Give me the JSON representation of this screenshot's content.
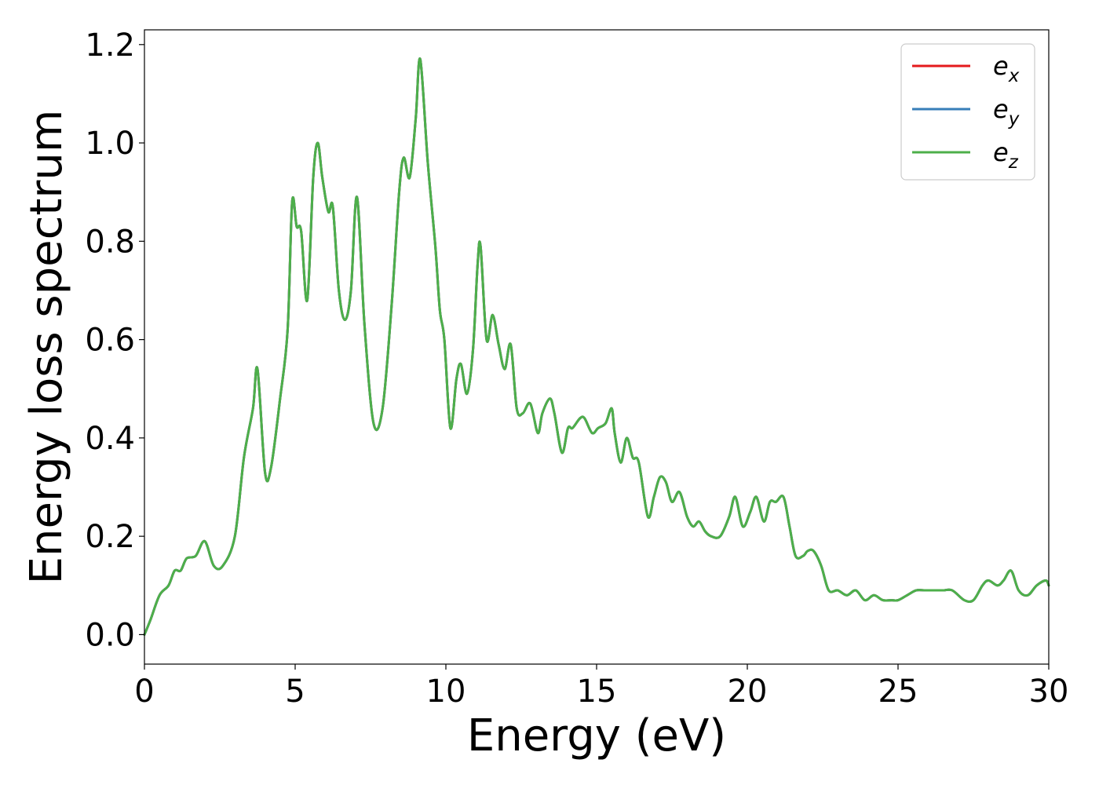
{
  "chart_data": {
    "type": "line",
    "title": "",
    "xlabel": "Energy (eV)",
    "ylabel": "Energy loss spectrum",
    "xlim": [
      0,
      30
    ],
    "ylim": [
      -0.06,
      1.23
    ],
    "xticks": [
      0,
      5,
      10,
      15,
      20,
      25,
      30
    ],
    "xtick_labels": [
      "0",
      "5",
      "10",
      "15",
      "20",
      "25",
      "30"
    ],
    "yticks": [
      0.0,
      0.2,
      0.4,
      0.6,
      0.8,
      1.0,
      1.2
    ],
    "ytick_labels": [
      "0.0",
      "0.2",
      "0.4",
      "0.6",
      "0.8",
      "1.0",
      "1.2"
    ],
    "grid": false,
    "legend_position": "top-right",
    "series": [
      {
        "name": "e_x",
        "legend_base": "e",
        "legend_sub": "x",
        "color": "#e41a1c",
        "x": [
          0,
          0.2,
          0.5,
          0.8,
          1.0,
          1.2,
          1.4,
          1.7,
          2.0,
          2.3,
          2.6,
          3.0,
          3.3,
          3.6,
          3.75,
          4.0,
          4.2,
          4.5,
          4.75,
          4.9,
          5.05,
          5.2,
          5.4,
          5.6,
          5.75,
          5.9,
          6.1,
          6.25,
          6.45,
          6.65,
          6.85,
          7.05,
          7.3,
          7.6,
          7.9,
          8.2,
          8.45,
          8.6,
          8.8,
          9.0,
          9.15,
          9.4,
          9.65,
          9.8,
          9.95,
          10.15,
          10.35,
          10.5,
          10.7,
          10.9,
          11.05,
          11.15,
          11.35,
          11.55,
          11.75,
          11.95,
          12.15,
          12.35,
          12.55,
          12.8,
          13.05,
          13.2,
          13.45,
          13.6,
          13.85,
          14.05,
          14.2,
          14.45,
          14.6,
          14.85,
          15.05,
          15.3,
          15.5,
          15.6,
          15.8,
          16.0,
          16.2,
          16.4,
          16.7,
          16.9,
          17.1,
          17.3,
          17.5,
          17.75,
          18.0,
          18.2,
          18.4,
          18.6,
          18.8,
          19.1,
          19.4,
          19.6,
          19.85,
          20.1,
          20.3,
          20.55,
          20.75,
          20.95,
          21.2,
          21.4,
          21.6,
          21.85,
          22.0,
          22.2,
          22.45,
          22.7,
          23.0,
          23.3,
          23.6,
          23.9,
          24.2,
          24.5,
          24.8,
          25.0,
          25.3,
          25.6,
          25.9,
          26.2,
          26.5,
          26.8,
          27.2,
          27.5,
          27.8,
          28.0,
          28.3,
          28.5,
          28.75,
          29.0,
          29.3,
          29.6,
          29.9,
          30.0
        ],
        "y": [
          0.0,
          0.03,
          0.08,
          0.1,
          0.13,
          0.13,
          0.155,
          0.16,
          0.19,
          0.14,
          0.14,
          0.2,
          0.36,
          0.46,
          0.54,
          0.33,
          0.34,
          0.48,
          0.62,
          0.88,
          0.83,
          0.82,
          0.68,
          0.93,
          1.0,
          0.93,
          0.86,
          0.87,
          0.7,
          0.64,
          0.7,
          0.89,
          0.63,
          0.43,
          0.46,
          0.67,
          0.9,
          0.97,
          0.93,
          1.05,
          1.17,
          0.96,
          0.79,
          0.66,
          0.6,
          0.42,
          0.52,
          0.55,
          0.49,
          0.58,
          0.75,
          0.79,
          0.6,
          0.65,
          0.59,
          0.54,
          0.59,
          0.46,
          0.45,
          0.47,
          0.41,
          0.45,
          0.48,
          0.45,
          0.37,
          0.42,
          0.42,
          0.44,
          0.44,
          0.41,
          0.42,
          0.43,
          0.46,
          0.41,
          0.35,
          0.4,
          0.36,
          0.35,
          0.24,
          0.28,
          0.32,
          0.31,
          0.27,
          0.29,
          0.24,
          0.22,
          0.23,
          0.21,
          0.2,
          0.2,
          0.24,
          0.28,
          0.22,
          0.25,
          0.28,
          0.23,
          0.27,
          0.27,
          0.28,
          0.22,
          0.16,
          0.16,
          0.17,
          0.17,
          0.14,
          0.09,
          0.09,
          0.08,
          0.09,
          0.07,
          0.08,
          0.07,
          0.07,
          0.07,
          0.08,
          0.09,
          0.09,
          0.09,
          0.09,
          0.09,
          0.07,
          0.07,
          0.1,
          0.11,
          0.1,
          0.11,
          0.13,
          0.09,
          0.08,
          0.1,
          0.11,
          0.1
        ]
      },
      {
        "name": "e_y",
        "legend_base": "e",
        "legend_sub": "y",
        "color": "#377eb8",
        "x": [
          0,
          0.2,
          0.5,
          0.8,
          1.0,
          1.2,
          1.4,
          1.7,
          2.0,
          2.3,
          2.6,
          3.0,
          3.3,
          3.6,
          3.75,
          4.0,
          4.2,
          4.5,
          4.75,
          4.9,
          5.05,
          5.2,
          5.4,
          5.6,
          5.75,
          5.9,
          6.1,
          6.25,
          6.45,
          6.65,
          6.85,
          7.05,
          7.3,
          7.6,
          7.9,
          8.2,
          8.45,
          8.6,
          8.8,
          9.0,
          9.15,
          9.4,
          9.65,
          9.8,
          9.95,
          10.15,
          10.35,
          10.5,
          10.7,
          10.9,
          11.05,
          11.15,
          11.35,
          11.55,
          11.75,
          11.95,
          12.15,
          12.35,
          12.55,
          12.8,
          13.05,
          13.2,
          13.45,
          13.6,
          13.85,
          14.05,
          14.2,
          14.45,
          14.6,
          14.85,
          15.05,
          15.3,
          15.5,
          15.6,
          15.8,
          16.0,
          16.2,
          16.4,
          16.7,
          16.9,
          17.1,
          17.3,
          17.5,
          17.75,
          18.0,
          18.2,
          18.4,
          18.6,
          18.8,
          19.1,
          19.4,
          19.6,
          19.85,
          20.1,
          20.3,
          20.55,
          20.75,
          20.95,
          21.2,
          21.4,
          21.6,
          21.85,
          22.0,
          22.2,
          22.45,
          22.7,
          23.0,
          23.3,
          23.6,
          23.9,
          24.2,
          24.5,
          24.8,
          25.0,
          25.3,
          25.6,
          25.9,
          26.2,
          26.5,
          26.8,
          27.2,
          27.5,
          27.8,
          28.0,
          28.3,
          28.5,
          28.75,
          29.0,
          29.3,
          29.6,
          29.9,
          30.0
        ],
        "y": [
          0.0,
          0.03,
          0.08,
          0.1,
          0.13,
          0.13,
          0.155,
          0.16,
          0.19,
          0.14,
          0.14,
          0.2,
          0.36,
          0.46,
          0.54,
          0.33,
          0.34,
          0.48,
          0.62,
          0.88,
          0.83,
          0.82,
          0.68,
          0.93,
          1.0,
          0.93,
          0.86,
          0.87,
          0.7,
          0.64,
          0.7,
          0.89,
          0.63,
          0.43,
          0.46,
          0.67,
          0.9,
          0.97,
          0.93,
          1.05,
          1.17,
          0.96,
          0.79,
          0.66,
          0.6,
          0.42,
          0.52,
          0.55,
          0.49,
          0.58,
          0.75,
          0.79,
          0.6,
          0.65,
          0.59,
          0.54,
          0.59,
          0.46,
          0.45,
          0.47,
          0.41,
          0.45,
          0.48,
          0.45,
          0.37,
          0.42,
          0.42,
          0.44,
          0.44,
          0.41,
          0.42,
          0.43,
          0.46,
          0.41,
          0.35,
          0.4,
          0.36,
          0.35,
          0.24,
          0.28,
          0.32,
          0.31,
          0.27,
          0.29,
          0.24,
          0.22,
          0.23,
          0.21,
          0.2,
          0.2,
          0.24,
          0.28,
          0.22,
          0.25,
          0.28,
          0.23,
          0.27,
          0.27,
          0.28,
          0.22,
          0.16,
          0.16,
          0.17,
          0.17,
          0.14,
          0.09,
          0.09,
          0.08,
          0.09,
          0.07,
          0.08,
          0.07,
          0.07,
          0.07,
          0.08,
          0.09,
          0.09,
          0.09,
          0.09,
          0.09,
          0.07,
          0.07,
          0.1,
          0.11,
          0.1,
          0.11,
          0.13,
          0.09,
          0.08,
          0.1,
          0.11,
          0.1
        ]
      },
      {
        "name": "e_z",
        "legend_base": "e",
        "legend_sub": "z",
        "color": "#4daf4a",
        "x": [
          0,
          0.2,
          0.5,
          0.8,
          1.0,
          1.2,
          1.4,
          1.7,
          2.0,
          2.3,
          2.6,
          3.0,
          3.3,
          3.6,
          3.75,
          4.0,
          4.2,
          4.5,
          4.75,
          4.9,
          5.05,
          5.2,
          5.4,
          5.6,
          5.75,
          5.9,
          6.1,
          6.25,
          6.45,
          6.65,
          6.85,
          7.05,
          7.3,
          7.6,
          7.9,
          8.2,
          8.45,
          8.6,
          8.8,
          9.0,
          9.15,
          9.4,
          9.65,
          9.8,
          9.95,
          10.15,
          10.35,
          10.5,
          10.7,
          10.9,
          11.05,
          11.15,
          11.35,
          11.55,
          11.75,
          11.95,
          12.15,
          12.35,
          12.55,
          12.8,
          13.05,
          13.2,
          13.45,
          13.6,
          13.85,
          14.05,
          14.2,
          14.45,
          14.6,
          14.85,
          15.05,
          15.3,
          15.5,
          15.6,
          15.8,
          16.0,
          16.2,
          16.4,
          16.7,
          16.9,
          17.1,
          17.3,
          17.5,
          17.75,
          18.0,
          18.2,
          18.4,
          18.6,
          18.8,
          19.1,
          19.4,
          19.6,
          19.85,
          20.1,
          20.3,
          20.55,
          20.75,
          20.95,
          21.2,
          21.4,
          21.6,
          21.85,
          22.0,
          22.2,
          22.45,
          22.7,
          23.0,
          23.3,
          23.6,
          23.9,
          24.2,
          24.5,
          24.8,
          25.0,
          25.3,
          25.6,
          25.9,
          26.2,
          26.5,
          26.8,
          27.2,
          27.5,
          27.8,
          28.0,
          28.3,
          28.5,
          28.75,
          29.0,
          29.3,
          29.6,
          29.9,
          30.0
        ],
        "y": [
          0.0,
          0.03,
          0.08,
          0.1,
          0.13,
          0.13,
          0.155,
          0.16,
          0.19,
          0.14,
          0.14,
          0.2,
          0.36,
          0.46,
          0.54,
          0.33,
          0.34,
          0.48,
          0.62,
          0.88,
          0.83,
          0.82,
          0.68,
          0.93,
          1.0,
          0.93,
          0.86,
          0.87,
          0.7,
          0.64,
          0.7,
          0.89,
          0.63,
          0.43,
          0.46,
          0.67,
          0.9,
          0.97,
          0.93,
          1.05,
          1.17,
          0.96,
          0.79,
          0.66,
          0.6,
          0.42,
          0.52,
          0.55,
          0.49,
          0.58,
          0.75,
          0.79,
          0.6,
          0.65,
          0.59,
          0.54,
          0.59,
          0.46,
          0.45,
          0.47,
          0.41,
          0.45,
          0.48,
          0.45,
          0.37,
          0.42,
          0.42,
          0.44,
          0.44,
          0.41,
          0.42,
          0.43,
          0.46,
          0.41,
          0.35,
          0.4,
          0.36,
          0.35,
          0.24,
          0.28,
          0.32,
          0.31,
          0.27,
          0.29,
          0.24,
          0.22,
          0.23,
          0.21,
          0.2,
          0.2,
          0.24,
          0.28,
          0.22,
          0.25,
          0.28,
          0.23,
          0.27,
          0.27,
          0.28,
          0.22,
          0.16,
          0.16,
          0.17,
          0.17,
          0.14,
          0.09,
          0.09,
          0.08,
          0.09,
          0.07,
          0.08,
          0.07,
          0.07,
          0.07,
          0.08,
          0.09,
          0.09,
          0.09,
          0.09,
          0.09,
          0.07,
          0.07,
          0.1,
          0.11,
          0.1,
          0.11,
          0.13,
          0.09,
          0.08,
          0.1,
          0.11,
          0.1
        ]
      }
    ]
  }
}
